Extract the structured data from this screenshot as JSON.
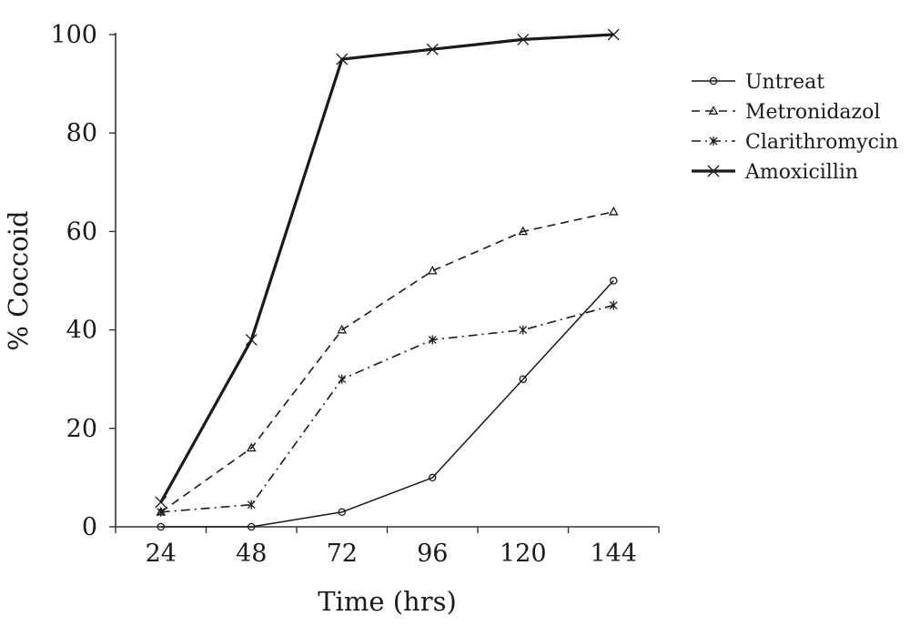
{
  "chart_data": {
    "type": "line",
    "title": "",
    "xlabel": "Time (hrs)",
    "ylabel": "% Coccoid",
    "categories": [
      "24",
      "48",
      "72",
      "96",
      "120",
      "144"
    ],
    "y_ticks": [
      "0",
      "20",
      "40",
      "60",
      "80",
      "100"
    ],
    "ylim": [
      0,
      100
    ],
    "grid": false,
    "legend_position": "right",
    "series": [
      {
        "name": "Untreat",
        "values": [
          0,
          0,
          3,
          10,
          30,
          50
        ],
        "line_style": "solid",
        "marker": "circle",
        "line_weight": "thin",
        "color": "#1a1a1a"
      },
      {
        "name": "Metronidazol",
        "values": [
          3,
          16,
          40,
          52,
          60,
          64
        ],
        "line_style": "dashed",
        "marker": "triangle",
        "line_weight": "normal",
        "color": "#1a1a1a"
      },
      {
        "name": "Clarithromycin",
        "values": [
          3,
          4.5,
          30,
          38,
          40,
          45
        ],
        "line_style": "dash-dot",
        "marker": "asterisk",
        "line_weight": "normal",
        "color": "#1a1a1a"
      },
      {
        "name": "Amoxicillin",
        "values": [
          5,
          38,
          95,
          97,
          99,
          100
        ],
        "line_style": "solid",
        "marker": "cross",
        "line_weight": "thick",
        "color": "#1a1a1a"
      }
    ]
  }
}
